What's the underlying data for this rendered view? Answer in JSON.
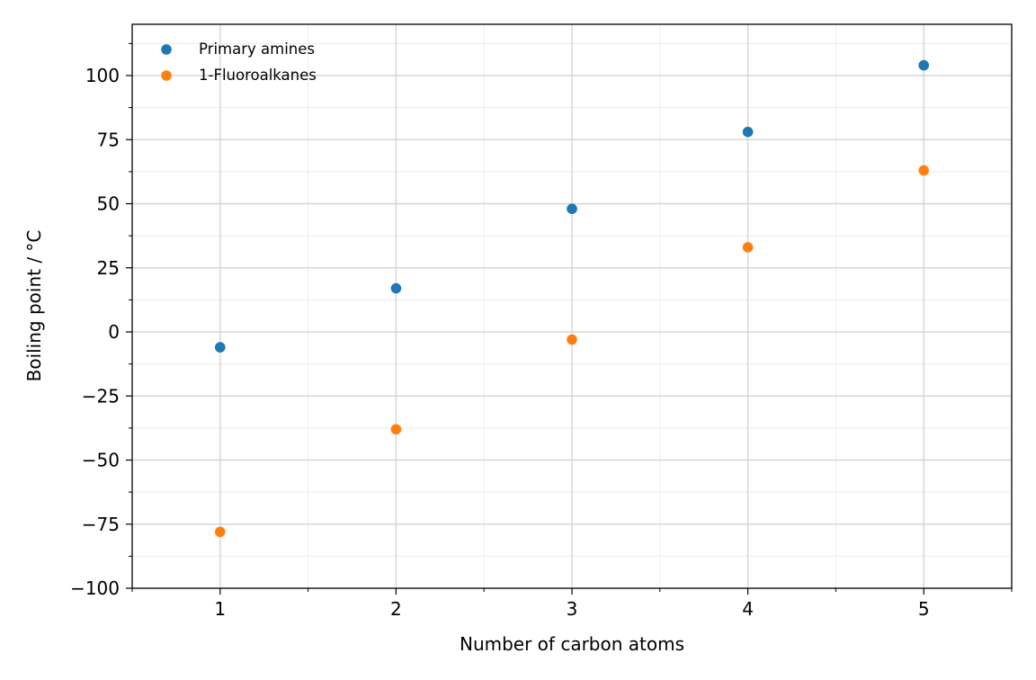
{
  "chart_data": {
    "type": "scatter",
    "xlabel": "Number of carbon atoms",
    "ylabel": "Boiling point / °C",
    "xlim": [
      0.5,
      5.5
    ],
    "ylim": [
      -100,
      120
    ],
    "xticks": [
      1,
      2,
      3,
      4,
      5
    ],
    "xtick_labels": [
      "1",
      "2",
      "3",
      "4",
      "5"
    ],
    "yticks": [
      -100,
      -75,
      -50,
      -25,
      0,
      25,
      50,
      75,
      100
    ],
    "ytick_labels": [
      "−100",
      "−75",
      "−50",
      "−25",
      "0",
      "25",
      "50",
      "75",
      "100"
    ],
    "grid": "major and minor",
    "legend_position": "top-left",
    "series": [
      {
        "name": "Primary amines",
        "color": "#1f77b4",
        "x": [
          1,
          2,
          3,
          4,
          5
        ],
        "y": [
          -6,
          17,
          48,
          78,
          104
        ]
      },
      {
        "name": "1-Fluoroalkanes",
        "color": "#ff7f0e",
        "x": [
          1,
          2,
          3,
          4,
          5
        ],
        "y": [
          -78,
          -38,
          -3,
          33,
          63
        ]
      }
    ]
  }
}
